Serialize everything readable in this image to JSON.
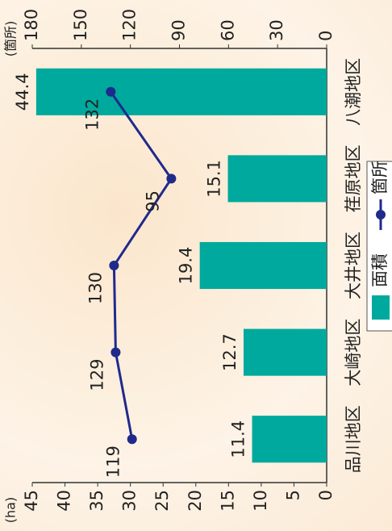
{
  "chart_data": {
    "type": "bar_line",
    "categories": [
      "品川地区",
      "大崎地区",
      "大井地区",
      "荏原地区",
      "八潮地区"
    ],
    "series": [
      {
        "name": "面積",
        "type": "bar",
        "color": "#00a99d",
        "values": [
          11.4,
          12.7,
          19.4,
          15.1,
          44.4
        ]
      },
      {
        "name": "箇所",
        "type": "line",
        "axis": "y2",
        "color": "#1f2a8c",
        "values": [
          119,
          129,
          130,
          95,
          132
        ]
      }
    ],
    "y_label": "(ha)",
    "y2_label": "(箇所)",
    "ylim": [
      0,
      45
    ],
    "yticks": [
      0,
      5,
      10,
      15,
      20,
      25,
      30,
      35,
      40,
      45
    ],
    "y2lim": [
      0,
      180
    ],
    "y2ticks": [
      0,
      30,
      60,
      90,
      120,
      150,
      180
    ],
    "legend": "bottom"
  }
}
